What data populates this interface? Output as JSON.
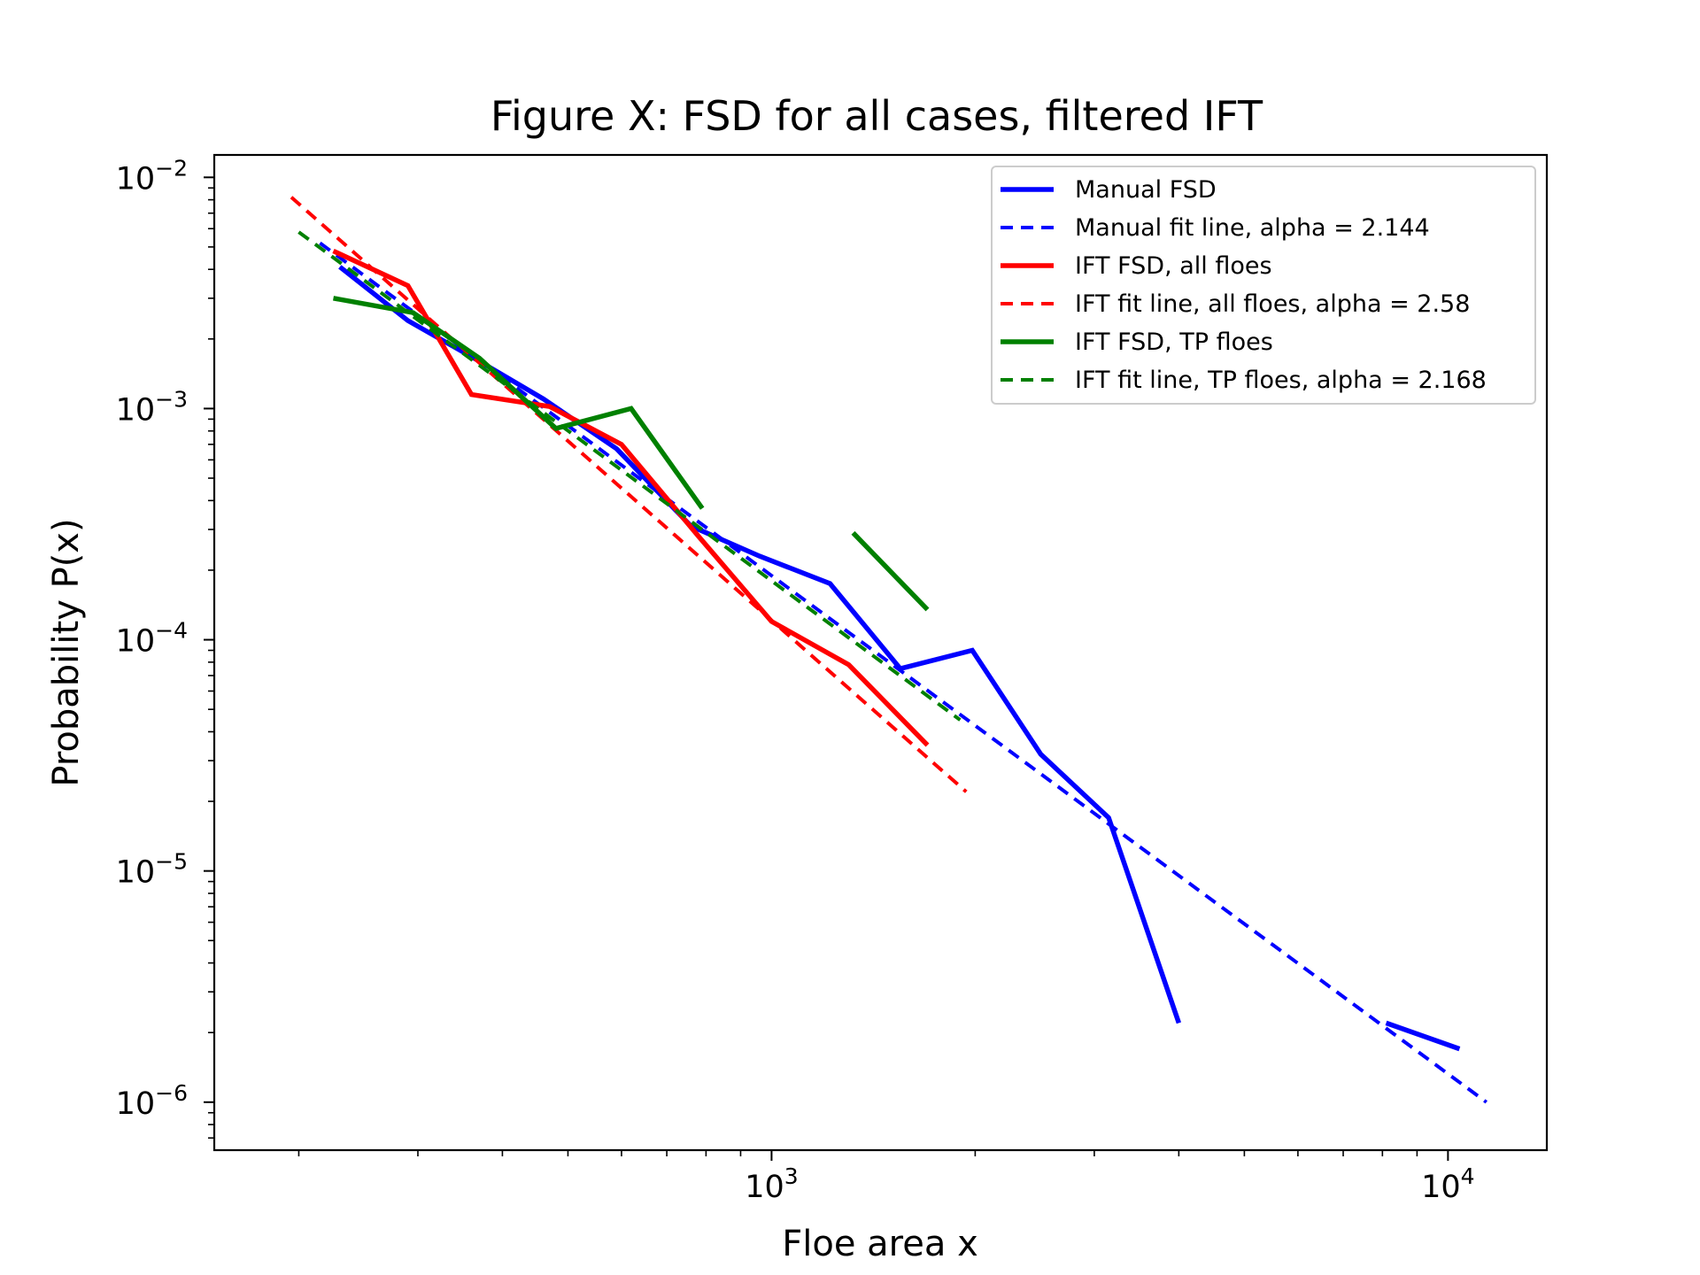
{
  "chart_data": {
    "type": "line",
    "title": "Figure X: FSD for all cases, filtered IFT",
    "xlabel": "Floe area x",
    "ylabel": "Probability P(x)",
    "xscale": "log",
    "yscale": "log",
    "xlim": [
      150,
      14000
    ],
    "ylim": [
      6.2e-07,
      0.0125
    ],
    "x_ticks": [
      {
        "value": 1000,
        "base": "10",
        "exp": "3"
      },
      {
        "value": 10000,
        "base": "10",
        "exp": "4"
      }
    ],
    "y_ticks": [
      {
        "value": 0.01,
        "base": "10",
        "exp": "−2"
      },
      {
        "value": 0.001,
        "base": "10",
        "exp": "−3"
      },
      {
        "value": 0.0001,
        "base": "10",
        "exp": "−4"
      },
      {
        "value": 1e-05,
        "base": "10",
        "exp": "−5"
      },
      {
        "value": 1e-06,
        "base": "10",
        "exp": "−6"
      }
    ],
    "grid": false,
    "legend_position": "top-right",
    "series": [
      {
        "name": "Manual FSD",
        "color": "#0000ff",
        "style": "solid",
        "segments": [
          [
            [
              230,
              0.0041
            ],
            [
              290,
              0.0024
            ],
            [
              370,
              0.0016
            ],
            [
              460,
              0.0011
            ],
            [
              590,
              0.00067
            ],
            [
              760,
              0.00031
            ],
            [
              960,
              0.00023
            ],
            [
              1220,
              0.000175
            ],
            [
              1550,
              7.5e-05
            ],
            [
              1980,
              9e-05
            ],
            [
              2500,
              3.2e-05
            ],
            [
              3150,
              1.7e-05
            ],
            [
              4000,
              2.2e-06
            ]
          ],
          [
            [
              8100,
              2.2e-06
            ],
            [
              10400,
              1.7e-06
            ]
          ]
        ]
      },
      {
        "name": "Manual fit line, alpha = 2.144",
        "color": "#0000ff",
        "style": "dashed",
        "segments": [
          [
            [
              215,
              0.0052
            ],
            [
              11400,
              1e-06
            ]
          ]
        ]
      },
      {
        "name": "IFT FSD, all floes",
        "color": "#ff0000",
        "style": "solid",
        "segments": [
          [
            [
              225,
              0.0048
            ],
            [
              290,
              0.0034
            ],
            [
              360,
              0.00115
            ],
            [
              470,
              0.00102
            ],
            [
              600,
              0.0007
            ],
            [
              780,
              0.00028
            ],
            [
              1000,
              0.00012
            ],
            [
              1300,
              7.8e-05
            ],
            [
              1700,
              3.5e-05
            ]
          ]
        ]
      },
      {
        "name": "IFT fit line, all floes, alpha = 2.58",
        "color": "#ff0000",
        "style": "dashed",
        "segments": [
          [
            [
              195,
              0.0082
            ],
            [
              1940,
              2.2e-05
            ]
          ]
        ]
      },
      {
        "name": "IFT FSD, TP floes",
        "color": "#008000",
        "style": "solid",
        "segments": [
          [
            [
              225,
              0.003
            ],
            [
              295,
              0.0026
            ],
            [
              370,
              0.00165
            ],
            [
              480,
              0.00082
            ],
            [
              620,
              0.001
            ],
            [
              790,
              0.00037
            ]
          ],
          [
            [
              1320,
              0.00029
            ],
            [
              1700,
              0.000135
            ]
          ]
        ]
      },
      {
        "name": "IFT fit line, TP floes, alpha = 2.168",
        "color": "#008000",
        "style": "dashed",
        "segments": [
          [
            [
              200,
              0.0058
            ],
            [
              1900,
              4.5e-05
            ]
          ]
        ]
      }
    ]
  }
}
